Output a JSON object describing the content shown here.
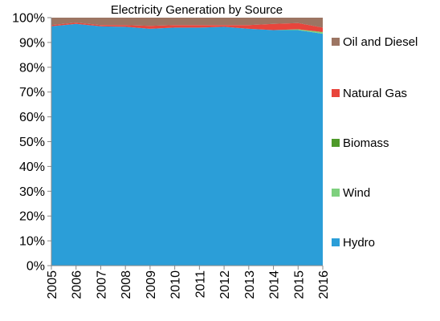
{
  "chart_data": {
    "type": "area",
    "stacked": "percent",
    "title": "Electricity Generation by Source",
    "xlabel": "",
    "ylabel": "",
    "ylim": [
      0,
      100
    ],
    "yticks": [
      "0%",
      "10%",
      "20%",
      "30%",
      "40%",
      "50%",
      "60%",
      "70%",
      "80%",
      "90%",
      "100%"
    ],
    "x": [
      "2005",
      "2006",
      "2007",
      "2008",
      "2009",
      "2010",
      "2011",
      "2012",
      "2013",
      "2014",
      "2015",
      "2016"
    ],
    "legend_position": "right",
    "grid": false,
    "series": [
      {
        "name": "Hydro",
        "color": "#2B9ED8",
        "values": [
          96.5,
          97.5,
          96.5,
          96.3,
          95.5,
          96.0,
          96.0,
          96.3,
          95.5,
          95.0,
          95.0,
          93.5
        ]
      },
      {
        "name": "Wind",
        "color": "#7ED07E",
        "values": [
          0.0,
          0.0,
          0.0,
          0.0,
          0.0,
          0.0,
          0.0,
          0.0,
          0.0,
          0.0,
          0.3,
          0.6
        ]
      },
      {
        "name": "Biomass",
        "color": "#4E9A2A",
        "values": [
          0.0,
          0.0,
          0.0,
          0.0,
          0.0,
          0.0,
          0.0,
          0.0,
          0.0,
          0.0,
          0.0,
          0.1
        ]
      },
      {
        "name": "Natural Gas",
        "color": "#E8453C",
        "values": [
          0.5,
          0.5,
          0.5,
          0.7,
          1.2,
          1.0,
          1.0,
          0.7,
          1.5,
          2.5,
          2.5,
          1.8
        ]
      },
      {
        "name": "Oil and Diesel",
        "color": "#9C7563",
        "values": [
          3.0,
          2.0,
          3.0,
          3.0,
          3.3,
          3.0,
          3.0,
          3.0,
          3.0,
          2.5,
          2.2,
          4.0
        ]
      }
    ]
  }
}
